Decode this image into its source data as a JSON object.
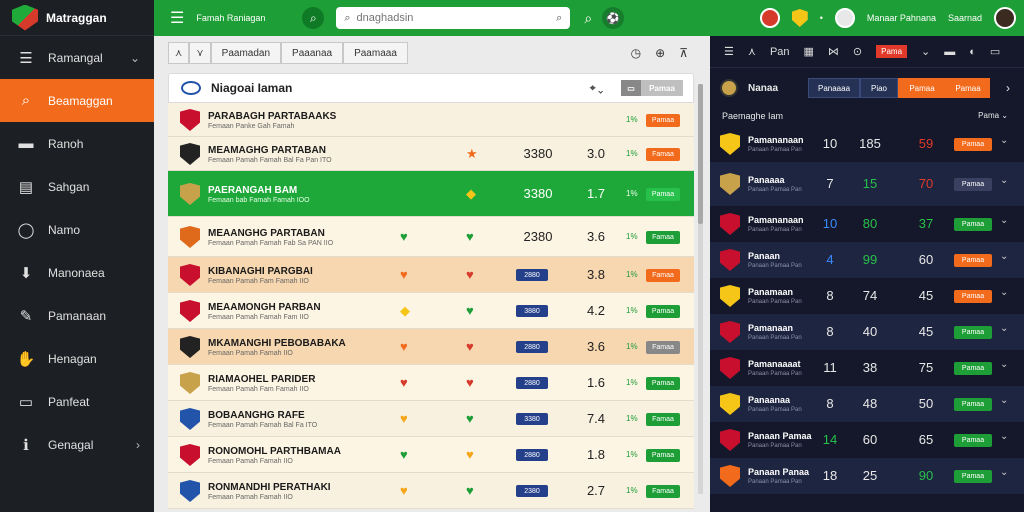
{
  "app": {
    "name": "Matraggan"
  },
  "sidebar": {
    "items": [
      {
        "label": "Ramangal",
        "icon": "list-icon",
        "glyph": "☰",
        "active": false,
        "chevron": "⌄"
      },
      {
        "label": "Beamaggan",
        "icon": "search-icon",
        "glyph": "⌕",
        "active": true,
        "chevron": ""
      },
      {
        "label": "Ranoh",
        "icon": "card-icon",
        "glyph": "▬",
        "active": false,
        "chevron": ""
      },
      {
        "label": "Sahgan",
        "icon": "document-icon",
        "glyph": "▤",
        "active": false,
        "chevron": ""
      },
      {
        "label": "Namo",
        "icon": "globe-icon",
        "glyph": "◯",
        "active": false,
        "chevron": ""
      },
      {
        "label": "Manonaea",
        "icon": "download-icon",
        "glyph": "⬇",
        "active": false,
        "chevron": ""
      },
      {
        "label": "Pamanaan",
        "icon": "chart-icon",
        "glyph": "✎",
        "active": false,
        "chevron": ""
      },
      {
        "label": "Henagan",
        "icon": "hand-icon",
        "glyph": "✋",
        "active": false,
        "chevron": ""
      },
      {
        "label": "Panfeat",
        "icon": "camera-icon",
        "glyph": "▭",
        "active": false,
        "chevron": ""
      },
      {
        "label": "Genagal",
        "icon": "info-icon",
        "glyph": "ℹ",
        "active": false,
        "chevron": "›"
      }
    ]
  },
  "topbar": {
    "title": "Famah Raniagan",
    "search_placeholder": "dnaghadsin",
    "right_small": "Manaar Pahnana",
    "right_small2": "Saarnad"
  },
  "center": {
    "tabs": [
      "⋏",
      "⋎",
      "Paamadan",
      "Paaanaa",
      "Paamaaa"
    ],
    "tools": [
      "◷",
      "⊕",
      "⊼"
    ],
    "header": {
      "title": "Niagoai Iaman",
      "ctrl": "⌖ ⌄",
      "btn_a": "▭",
      "btn_b": "Pamaa"
    },
    "rows": [
      {
        "team": "PARABAGH PARTABAAKS",
        "sub": "Femaan Panke Gah Famah",
        "bg": "#f8f1df",
        "crest": "#c8102e",
        "fav": "",
        "fav_color": "",
        "score": "",
        "odd": "",
        "pct": "1%",
        "pill": "Pamaa",
        "pill_color": "#f26a1b",
        "h": 34
      },
      {
        "team": "MEAMAGHG PARTABAN",
        "sub": "Femaan Pamah Famah Bal Fa Pan ITO",
        "bg": "#f8f1df",
        "crest": "#222",
        "fav": "★",
        "fav_color": "#f26a1b",
        "score": "3380",
        "odd": "3.0",
        "pct": "1%",
        "pill": "Famaa",
        "pill_color": "#f26a1b",
        "h": 34
      },
      {
        "team": "PAERANGAH BAM",
        "sub": "Femaan bab Famah Famah IOO",
        "bg": "#1fa83a",
        "crest": "#c8a24a",
        "fav": "◆",
        "fav_color": "#f5c518",
        "score": "3380",
        "odd": "1.7",
        "pct": "1%",
        "pill": "Pamaa",
        "pill_color": "#27c04a",
        "h": 46,
        "active": true
      },
      {
        "team": "MEAANGHG PARTABAN",
        "sub": "Femaan Pamah Famah Fab Sa PAN IIO",
        "bg": "#fdf5e4",
        "crest": "#e06a1b",
        "fav": "♥",
        "fav_color": "#1e9e36",
        "fav2": "♥",
        "fav2_color": "#1e9e36",
        "score": "2380",
        "odd": "3.6",
        "pct": "1%",
        "pill": "Famaa",
        "pill_color": "#1e9e36",
        "h": 40
      },
      {
        "team": "KIBANAGHI PARGBAI",
        "sub": "Femaan Pamah Fam Famah IIO",
        "bg": "#f7d7b0",
        "crest": "#c8102e",
        "fav": "♥",
        "fav_color": "#f26a1b",
        "fav2": "♥",
        "fav2_color": "#d63a2a",
        "score": "2880",
        "pill_score": true,
        "odd": "3.8",
        "pct": "1%",
        "pill": "Famaa",
        "pill_color": "#f26a1b",
        "h": 36
      },
      {
        "team": "MEAAMONGH PARBAN",
        "sub": "Femaan Pamah Famah Fam IIO",
        "bg": "#fdf5e4",
        "crest": "#c8102e",
        "fav": "◆",
        "fav_color": "#f5c518",
        "fav2": "♥",
        "fav2_color": "#1e9e36",
        "score": "3880",
        "pill_score": true,
        "odd": "4.2",
        "pct": "1%",
        "pill": "Pamaa",
        "pill_color": "#1e9e36",
        "h": 36
      },
      {
        "team": "MKAMANGHI PEBOBABAKA",
        "sub": "Femaan Pamah Famah IIO",
        "bg": "#f7d7b0",
        "crest": "#222",
        "fav": "♥",
        "fav_color": "#f26a1b",
        "fav2": "♥",
        "fav2_color": "#d63a2a",
        "score": "2880",
        "pill_score": true,
        "odd": "3.6",
        "pct": "1%",
        "pill": "Famaa",
        "pill_color": "#888",
        "h": 36
      },
      {
        "team": "RIAMAOHEL PARIDER",
        "sub": "Femaan Pamah Fam Famah IIO",
        "bg": "#fdf5e4",
        "crest": "#c8a24a",
        "fav": "♥",
        "fav_color": "#d63a2a",
        "fav2": "♥",
        "fav2_color": "#d63a2a",
        "score": "2880",
        "pill_score": true,
        "odd": "1.6",
        "pct": "1%",
        "pill": "Pamaa",
        "pill_color": "#1e9e36",
        "h": 36
      },
      {
        "team": "BOBAANGHG RAFE",
        "sub": "Femaan Pamah Famah Bal Fa ITO",
        "bg": "#f8f1df",
        "crest": "#2255aa",
        "fav": "♥",
        "fav_color": "#f5a518",
        "fav2": "♥",
        "fav2_color": "#1e9e36",
        "score": "3380",
        "pill_score": true,
        "odd": "7.4",
        "pct": "1%",
        "pill": "Famaa",
        "pill_color": "#1e9e36",
        "h": 36
      },
      {
        "team": "RONOMOHL PARTHBAMAA",
        "sub": "Femaan Pamah Famah IIO",
        "bg": "#fdf5e4",
        "crest": "#c8102e",
        "fav": "♥",
        "fav_color": "#1e9e36",
        "fav2": "♥",
        "fav2_color": "#f5a518",
        "score": "2880",
        "pill_score": true,
        "odd": "1.8",
        "pct": "1%",
        "pill": "Pamaa",
        "pill_color": "#1e9e36",
        "h": 36
      },
      {
        "team": "RONMANDHI PERATHAKI",
        "sub": "Femaan Pamah Famah IIO",
        "bg": "#f8f1df",
        "crest": "#2255aa",
        "fav": "♥",
        "fav_color": "#f5a518",
        "fav2": "♥",
        "fav2_color": "#1e9e36",
        "score": "2380",
        "pill_score": true,
        "odd": "2.7",
        "pct": "1%",
        "pill": "Famaa",
        "pill_color": "#1e9e36",
        "h": 36
      }
    ]
  },
  "right": {
    "tools": [
      "☰",
      "⋏",
      "Pan",
      "▦",
      "⋈",
      "⊙",
      "Pama",
      "⌄",
      "▬",
      "◐",
      "▭"
    ],
    "header": {
      "title": "Nanaa",
      "tabs": [
        "Panaaaa",
        "Piao",
        "Pamaa",
        "Pamaa"
      ],
      "next": "›"
    },
    "sub_left": "Paemaghe Iam",
    "sub_right": "Pama ⌄",
    "rows": [
      {
        "name": "Pamananaan",
        "sub": "Panaan Pamaa Pan",
        "crest": "#f5c518",
        "n1": "10",
        "n2": "185",
        "n3": "59",
        "n3c": "#e03a2a",
        "pill": "Pamaa",
        "pill_color": "#f26a1b",
        "bg": "#14182a"
      },
      {
        "name": "Panaaaa",
        "sub": "Panaan Pamaa Pan",
        "crest": "#c8a24a",
        "n1": "7",
        "n2": "15",
        "n3": "70",
        "n3c": "#e03a2a",
        "n2c": "#27c04a",
        "pill": "Pamaa",
        "pill_color": "#3a4060",
        "bg": "#1e2540"
      },
      {
        "name": "Pamananaan",
        "sub": "Panaan Pamaa Pan",
        "crest": "#c8102e",
        "n1": "10",
        "n1c": "#3a8aff",
        "n2": "80",
        "n2c": "#27c04a",
        "n3": "37",
        "n3c": "#27c04a",
        "pill": "Pamaa",
        "pill_color": "#1e9e36",
        "bg": "#14182a"
      },
      {
        "name": "Panaan",
        "sub": "Panaan Pamaa Pan",
        "crest": "#c8102e",
        "n1": "4",
        "n1c": "#3a8aff",
        "n2": "99",
        "n2c": "#27c04a",
        "n3": "60",
        "pill": "Pamaa",
        "pill_color": "#f26a1b",
        "bg": "#1e2540"
      },
      {
        "name": "Panamaan",
        "sub": "Panaan Pamaa Pan",
        "crest": "#f5c518",
        "n1": "8",
        "n2": "74",
        "n3": "45",
        "pill": "Pamaa",
        "pill_color": "#f26a1b",
        "bg": "#14182a"
      },
      {
        "name": "Pamanaan",
        "sub": "Panaan Pamaa Pan",
        "crest": "#c8102e",
        "n1": "8",
        "n2": "40",
        "n3": "45",
        "pill": "Pamaa",
        "pill_color": "#1e9e36",
        "bg": "#1e2540"
      },
      {
        "name": "Pamanaaaat",
        "sub": "Panaan Pamaa Pan",
        "crest": "#c8102e",
        "n1": "11",
        "n2": "38",
        "n3": "75",
        "pill": "Pamaa",
        "pill_color": "#1e9e36",
        "bg": "#14182a"
      },
      {
        "name": "Panaanaa",
        "sub": "Panaan Pamaa Pan",
        "crest": "#f5c518",
        "n1": "8",
        "n2": "48",
        "n3": "50",
        "pill": "Pamaa",
        "pill_color": "#1e9e36",
        "bg": "#1e2540"
      },
      {
        "name": "Panaan Pamaa",
        "sub": "Panaan Pamaa Pan",
        "crest": "#c8102e",
        "n1": "14",
        "n1c": "#27c04a",
        "n2": "60",
        "n3": "65",
        "pill": "Pamaa",
        "pill_color": "#1e9e36",
        "bg": "#14182a"
      },
      {
        "name": "Panaan Panaa",
        "sub": "Panaan Pamaa Pan",
        "crest": "#f26a1b",
        "n1": "18",
        "n2": "25",
        "n3": "90",
        "n3c": "#27c04a",
        "pill": "Pamaa",
        "pill_color": "#1e9e36",
        "bg": "#1e2540"
      }
    ]
  }
}
